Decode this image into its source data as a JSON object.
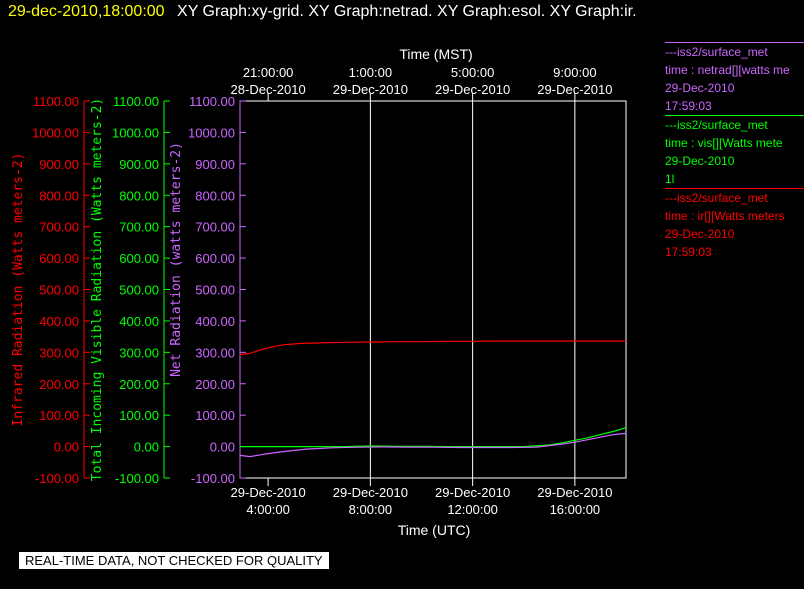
{
  "header": {
    "datetime": "29-dec-2010,18:00:00",
    "graphs": "XY Graph:xy-grid.  XY Graph:netrad.  XY Graph:esol.  XY Graph:ir."
  },
  "legend": [
    {
      "color": "#cc66ff",
      "lines": [
        "---iss2/surface_met",
        "time : netrad[][watts me",
        "29-Dec-2010",
        "17:59:03"
      ]
    },
    {
      "color": "#00ff00",
      "lines": [
        "---iss2/surface_met",
        "time : vis[][Watts mete",
        "29-Dec-2010",
        "1l"
      ]
    },
    {
      "color": "#ff0000",
      "lines": [
        "---iss2/surface_met",
        "time : ir[][Watts meters",
        "29-Dec-2010",
        "17:59:03"
      ]
    }
  ],
  "notice": "REAL-TIME DATA, NOT CHECKED FOR QUALITY",
  "chart_data": {
    "type": "line",
    "colors": {
      "ir": "#ff0000",
      "vis": "#00ff00",
      "net": "#cc66ff",
      "grid": "#ffffff"
    },
    "top_axis": {
      "label": "Time (MST)",
      "ticks": [
        {
          "t": "21:00:00",
          "d": "28-Dec-2010"
        },
        {
          "t": "1:00:00",
          "d": "29-Dec-2010"
        },
        {
          "t": "5:00:00",
          "d": "29-Dec-2010"
        },
        {
          "t": "9:00:00",
          "d": "29-Dec-2010"
        }
      ]
    },
    "bottom_axis": {
      "label": "Time (UTC)",
      "ticks": [
        {
          "t": "4:00:00",
          "d": "29-Dec-2010"
        },
        {
          "t": "8:00:00",
          "d": "29-Dec-2010"
        },
        {
          "t": "12:00:00",
          "d": "29-Dec-2010"
        },
        {
          "t": "16:00:00",
          "d": "29-Dec-2010"
        }
      ]
    },
    "x_hours_utc": [
      2.9,
      16.0,
      17.2,
      18.0
    ],
    "y_axes": [
      {
        "name": "ir",
        "label": "Infrared Radiation (Watts meters-2)",
        "ylim": [
          -100,
          1100
        ]
      },
      {
        "name": "vis",
        "label": "Total Incoming Visible Radiation (Watts meters-2)",
        "ylim": [
          -100,
          1100
        ]
      },
      {
        "name": "net",
        "label": "Net Radiation (watts meters-2)",
        "ylim": [
          -100,
          1100
        ]
      }
    ],
    "y_ticks": [
      "1100.00",
      "1000.00",
      "900.00",
      "800.00",
      "700.00",
      "600.00",
      "500.00",
      "400.00",
      "300.00",
      "200.00",
      "100.00",
      "0.00",
      "-100.00"
    ],
    "series": [
      {
        "key": "ir",
        "x": [
          2.9,
          3.2,
          3.5,
          3.8,
          4.2,
          4.6,
          5.2,
          6,
          7,
          8,
          9,
          10,
          11,
          12,
          13,
          14,
          15,
          16,
          17,
          18
        ],
        "y": [
          293,
          295,
          302,
          310,
          318,
          324,
          328,
          330,
          332,
          333,
          334,
          334,
          335,
          335,
          336,
          336,
          336,
          336,
          336,
          336
        ]
      },
      {
        "key": "vis",
        "x": [
          2.9,
          3.5,
          4,
          5,
          6,
          7,
          8,
          9,
          10,
          11,
          12,
          13,
          14,
          15,
          15.5,
          16,
          16.5,
          17,
          17.5,
          18
        ],
        "y": [
          0,
          0,
          0,
          0,
          0,
          0,
          2,
          1,
          1,
          0,
          0,
          0,
          0,
          5,
          12,
          20,
          28,
          38,
          48,
          60
        ]
      },
      {
        "key": "net",
        "x": [
          2.9,
          3.3,
          3.7,
          4.2,
          4.8,
          5.5,
          6.5,
          7.5,
          8.5,
          9.5,
          10.5,
          11.5,
          12.5,
          13.5,
          14.5,
          15,
          15.5,
          16,
          16.5,
          17,
          17.5,
          18
        ],
        "y": [
          -28,
          -32,
          -26,
          -20,
          -14,
          -8,
          -4,
          -2,
          -1,
          -2,
          -2,
          -3,
          -3,
          -3,
          -2,
          3,
          8,
          14,
          22,
          30,
          38,
          42
        ]
      }
    ]
  }
}
